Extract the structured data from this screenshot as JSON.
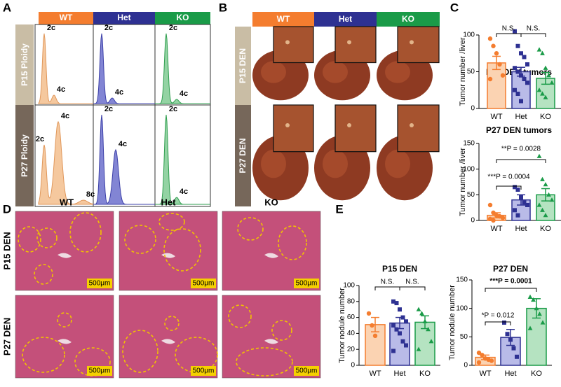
{
  "panel_labels": [
    "A",
    "B",
    "C",
    "D",
    "E"
  ],
  "ploidy": {
    "columns": [
      "WT",
      "Het",
      "KO"
    ],
    "rows": [
      "P15 Ploidy",
      "P27 Ploidy"
    ],
    "peaks": [
      [
        [
          "2c",
          "4c"
        ],
        [
          "2c",
          "4c"
        ],
        [
          "2c",
          "4c"
        ]
      ],
      [
        [
          "2c",
          "4c",
          "8c"
        ],
        [
          "2c",
          "4c"
        ],
        [
          "2c",
          "4c"
        ]
      ]
    ]
  },
  "photos": {
    "columns": [
      "WT",
      "Het",
      "KO"
    ],
    "rows": [
      "P15 DEN",
      "P27 DEN"
    ]
  },
  "histology": {
    "columns": [
      "WT",
      "Het",
      "KO"
    ],
    "rows": [
      "P15 DEN",
      "P27 DEN"
    ],
    "scale_bars": [
      [
        "500μm",
        "500μm",
        "500μm"
      ],
      [
        "500μm",
        "500μm",
        "500μm"
      ]
    ]
  },
  "chart_data": [
    {
      "type": "bar",
      "title": "P15 DEN tumors",
      "y_label": "Tumor number /liver",
      "categories": [
        "WT",
        "Het",
        "KO"
      ],
      "values": [
        62,
        50,
        41
      ],
      "errors": [
        9,
        6,
        8
      ],
      "points": [
        [
          95,
          85,
          75,
          60,
          45,
          40
        ],
        [
          105,
          85,
          75,
          70,
          60,
          55,
          50,
          45,
          40,
          35,
          25,
          20,
          10
        ],
        [
          80,
          75,
          55,
          45,
          35,
          25,
          20,
          15
        ]
      ],
      "colors": [
        "#f47d2f",
        "#2e3192",
        "#1a9b48"
      ],
      "fill_colors": [
        "#fbd3b2",
        "#b9bbe8",
        "#b5e3c1"
      ],
      "ylim": [
        0,
        100
      ],
      "yticks": [
        0,
        50,
        100
      ],
      "annotations": [
        "N.S.",
        "N.S."
      ]
    },
    {
      "type": "bar",
      "title": "P27 DEN tumors",
      "y_label": "Tumor number /liver",
      "categories": [
        "WT",
        "Het",
        "KO"
      ],
      "values": [
        10,
        40,
        50
      ],
      "errors": [
        5,
        10,
        12
      ],
      "points": [
        [
          30,
          15,
          10,
          8,
          5,
          3,
          0
        ],
        [
          65,
          60,
          45,
          35,
          30,
          20,
          10
        ],
        [
          125,
          80,
          70,
          50,
          40,
          30,
          20,
          10
        ]
      ],
      "colors": [
        "#f47d2f",
        "#2e3192",
        "#1a9b48"
      ],
      "fill_colors": [
        "#fbd3b2",
        "#b9bbe8",
        "#b5e3c1"
      ],
      "ylim": [
        0,
        150
      ],
      "yticks": [
        0,
        50,
        100,
        150
      ],
      "annotations": [
        "**P = 0.0028",
        "***P = 0.0004"
      ]
    },
    {
      "type": "bar",
      "title": "P15 DEN",
      "y_label": "Tumor nodule number",
      "categories": [
        "WT",
        "Het",
        "KO"
      ],
      "values": [
        51,
        53,
        54
      ],
      "errors": [
        9,
        7,
        8
      ],
      "points": [
        [
          65,
          50,
          37
        ],
        [
          80,
          78,
          70,
          60,
          55,
          50,
          45,
          40,
          30,
          25,
          18
        ],
        [
          70,
          65,
          55,
          45,
          30,
          20
        ]
      ],
      "colors": [
        "#f47d2f",
        "#2e3192",
        "#1a9b48"
      ],
      "fill_colors": [
        "#fbd3b2",
        "#b9bbe8",
        "#b5e3c1"
      ],
      "ylim": [
        0,
        100
      ],
      "yticks": [
        0,
        20,
        40,
        60,
        80,
        100
      ],
      "annotations": [
        "N.S.",
        "N.S."
      ]
    },
    {
      "type": "bar",
      "title": "P27 DEN",
      "y_label": "Tumor nodule number",
      "categories": [
        "WT",
        "Het",
        "KO"
      ],
      "values": [
        14,
        49,
        100
      ],
      "errors": [
        4,
        14,
        17
      ],
      "points": [
        [
          22,
          18,
          12,
          10,
          8,
          5
        ],
        [
          75,
          55,
          45,
          30,
          15
        ],
        [
          120,
          115,
          100,
          90,
          75,
          65
        ]
      ],
      "colors": [
        "#f47d2f",
        "#2e3192",
        "#1a9b48"
      ],
      "fill_colors": [
        "#fbd3b2",
        "#b9bbe8",
        "#b5e3c1"
      ],
      "ylim": [
        0,
        150
      ],
      "yticks": [
        0,
        50,
        100,
        150
      ],
      "annotations": [
        "***P = 0.0001",
        "*P = 0.012"
      ]
    }
  ]
}
